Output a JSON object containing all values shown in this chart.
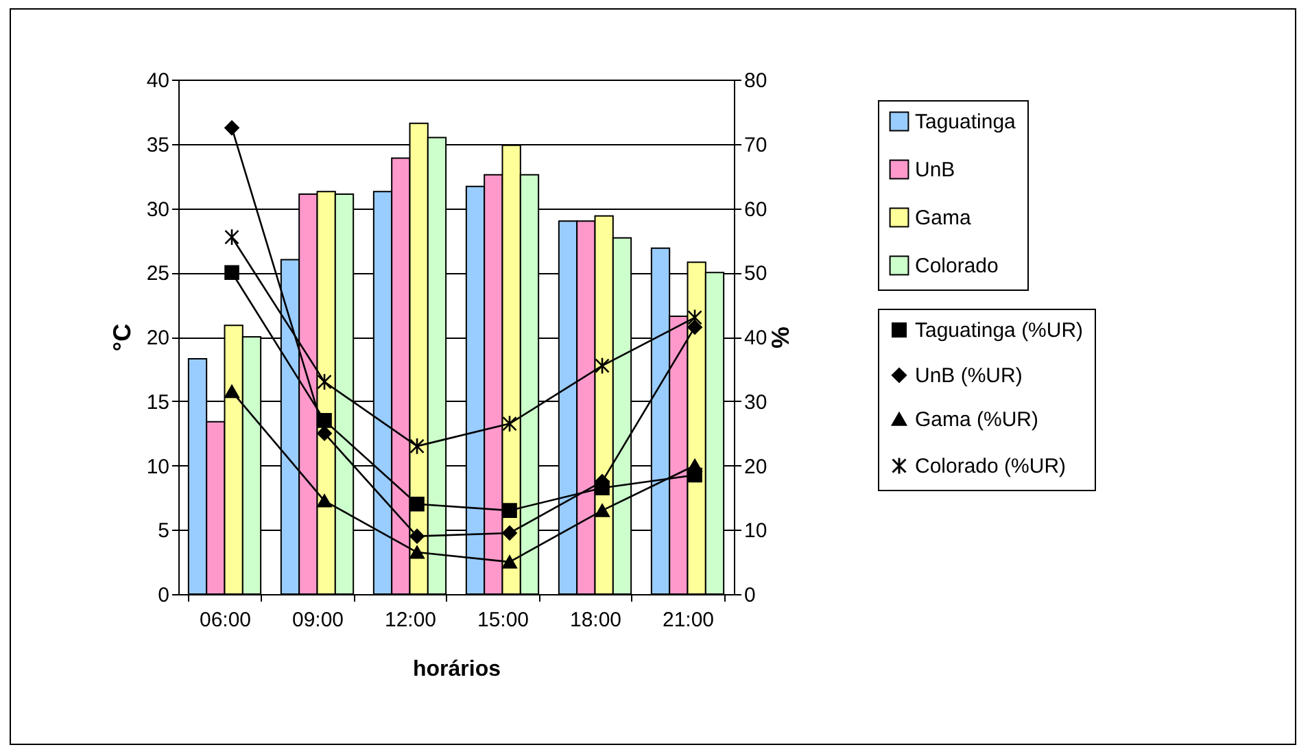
{
  "chart_data": {
    "type": "bar",
    "xlabel": "horários",
    "ylabel": "°C",
    "y2label": "%",
    "categories": [
      "06:00",
      "09:00",
      "12:00",
      "15:00",
      "18:00",
      "21:00"
    ],
    "series": [
      {
        "name": "Taguatinga",
        "color": "#99ccff",
        "values": [
          18.3,
          26.0,
          31.3,
          31.7,
          29.0,
          26.9
        ]
      },
      {
        "name": "UnB",
        "color": "#ff99cc",
        "values": [
          13.4,
          31.1,
          33.9,
          32.6,
          29.0,
          21.6
        ]
      },
      {
        "name": "Gama",
        "color": "#ffff99",
        "values": [
          20.9,
          31.3,
          36.6,
          34.9,
          29.4,
          25.8
        ]
      },
      {
        "name": "Colorado",
        "color": "#ccffcc",
        "values": [
          20.0,
          31.1,
          35.5,
          32.6,
          27.7,
          25.0
        ]
      },
      {
        "name": "Taguatinga (%UR)",
        "type": "line",
        "axis": "y2",
        "marker": "square",
        "color": "#000000",
        "values": [
          50,
          27,
          14,
          13,
          16.5,
          18.5
        ]
      },
      {
        "name": "UnB (%UR)",
        "type": "line",
        "axis": "y2",
        "marker": "diamond",
        "color": "#000000",
        "values": [
          72.5,
          25,
          9,
          9.5,
          17.5,
          41.5
        ]
      },
      {
        "name": "Gama (%UR)",
        "type": "line",
        "axis": "y2",
        "marker": "triangle",
        "color": "#000000",
        "values": [
          31.5,
          14.5,
          6.5,
          5,
          13,
          20
        ]
      },
      {
        "name": "Colorado (%UR)",
        "type": "line",
        "axis": "y2",
        "marker": "cross",
        "color": "#000000",
        "values": [
          55.5,
          33,
          23,
          26.5,
          35.5,
          43
        ]
      }
    ],
    "ylim": [
      0,
      40
    ],
    "yticks": [
      0,
      5,
      10,
      15,
      20,
      25,
      30,
      35,
      40
    ],
    "y2lim": [
      0,
      80
    ],
    "y2ticks": [
      0,
      10,
      20,
      30,
      40,
      50,
      60,
      70,
      80
    ],
    "grid": "y",
    "legend": "right"
  }
}
